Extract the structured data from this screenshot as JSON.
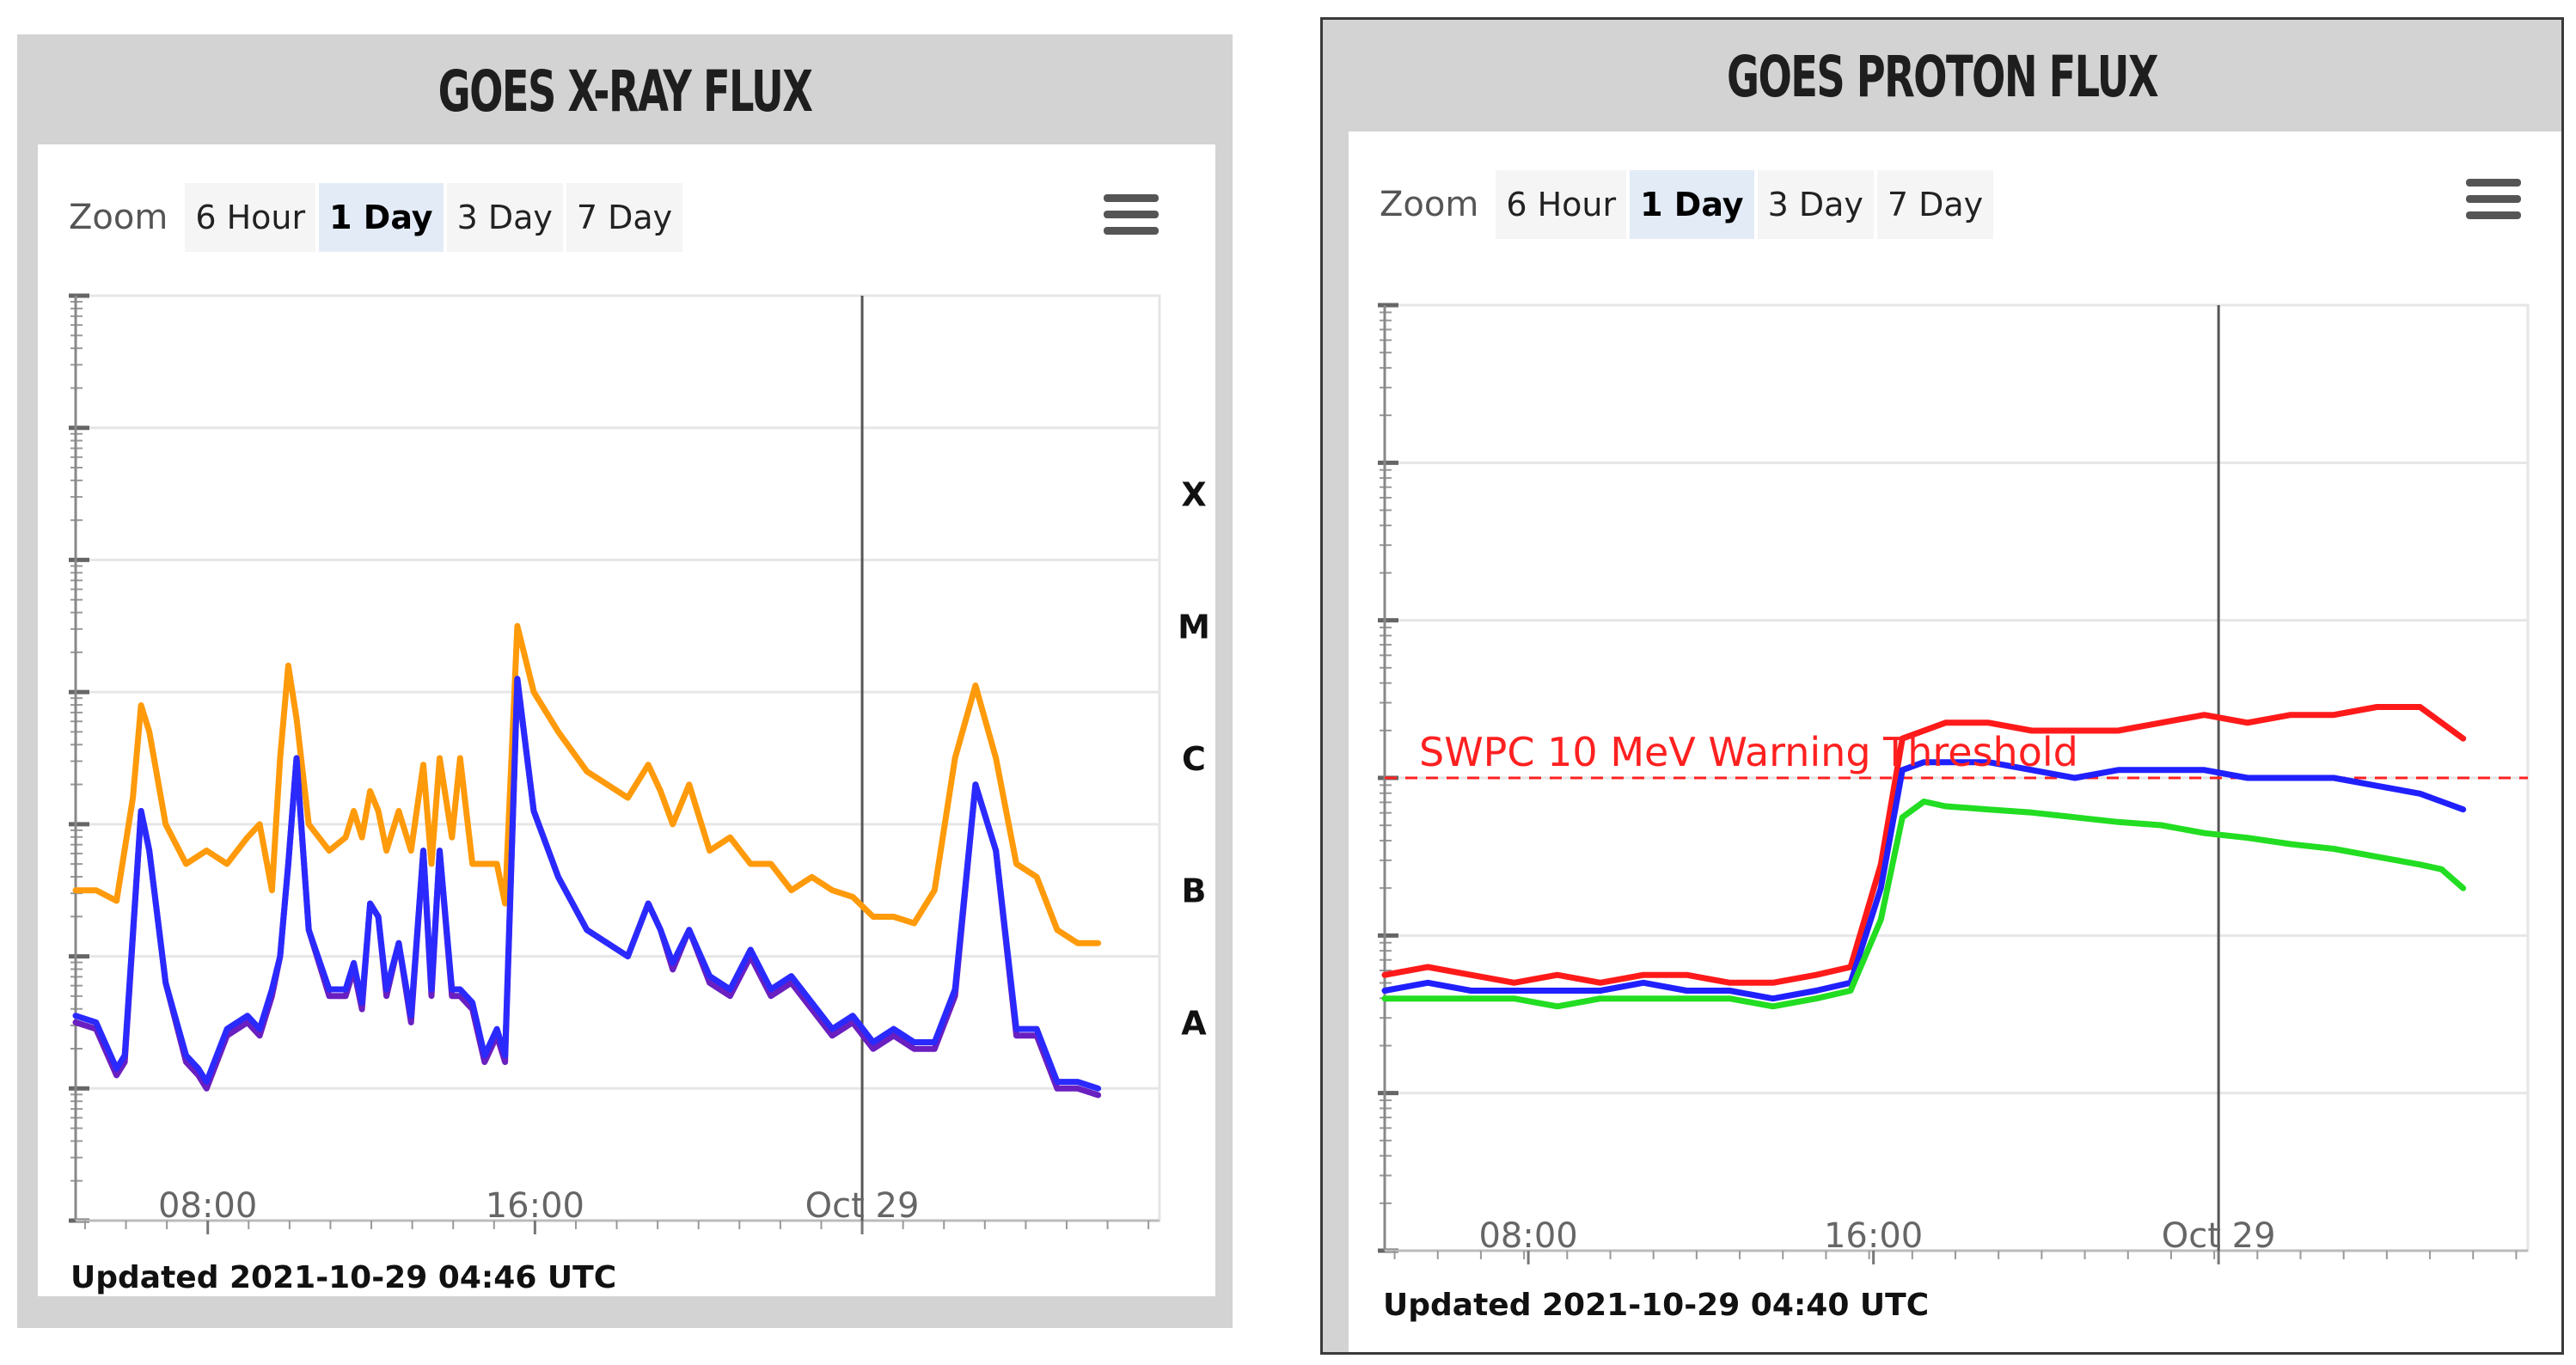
{
  "panels": [
    {
      "title": "GOES X-RAY FLUX",
      "zoom_label": "Zoom",
      "zoom_buttons": [
        "6 Hour",
        "1 Day",
        "3 Day",
        "7 Day"
      ],
      "active_zoom": "1 Day",
      "updated": "Updated 2021-10-29 04:46 UTC"
    },
    {
      "title": "GOES PROTON FLUX",
      "zoom_label": "Zoom",
      "zoom_buttons": [
        "6 Hour",
        "1 Day",
        "3 Day",
        "7 Day"
      ],
      "active_zoom": "1 Day",
      "updated": "Updated 2021-10-29 04:40 UTC"
    }
  ],
  "chart_data": [
    {
      "type": "line",
      "title": "GOES X-RAY FLUX",
      "x_unit": "hours since 2021-10-28 04:46 UTC",
      "xlim": [
        0,
        26.5
      ],
      "x_tick_labels": [
        {
          "x": 3.23,
          "label": "08:00"
        },
        {
          "x": 11.23,
          "label": "16:00"
        },
        {
          "x": 19.23,
          "label": "Oct 29"
        }
      ],
      "ylim_log10": [
        -9,
        -2
      ],
      "y_scale": "log",
      "flare_class_labels": [
        {
          "log10": -3.5,
          "label": "X"
        },
        {
          "log10": -4.5,
          "label": "M"
        },
        {
          "log10": -5.5,
          "label": "C"
        },
        {
          "log10": -6.5,
          "label": "B"
        },
        {
          "log10": -7.5,
          "label": "A"
        }
      ],
      "grid": true,
      "vertical_line_x": 19.23,
      "series": [
        {
          "color": "#ff9a0a",
          "x": [
            0,
            0.5,
            1.0,
            1.4,
            1.6,
            1.8,
            2.2,
            2.7,
            3.2,
            3.7,
            4.2,
            4.5,
            4.8,
            5.0,
            5.2,
            5.4,
            5.7,
            6.2,
            6.6,
            6.8,
            7.0,
            7.2,
            7.4,
            7.6,
            7.9,
            8.2,
            8.5,
            8.7,
            8.9,
            9.2,
            9.4,
            9.7,
            10.0,
            10.3,
            10.5,
            10.8,
            11.0,
            11.2,
            11.8,
            12.5,
            13.5,
            14.0,
            14.3,
            14.6,
            15.0,
            15.5,
            16.0,
            16.5,
            17.0,
            17.5,
            18.0,
            18.5,
            19.0,
            19.5,
            20.0,
            20.5,
            21.0,
            21.5,
            22.0,
            22.5,
            23.0,
            23.5,
            24.0,
            24.5,
            25.0
          ],
          "log10": [
            -6.5,
            -6.5,
            -6.58,
            -5.8,
            -5.1,
            -5.3,
            -6.0,
            -6.3,
            -6.2,
            -6.3,
            -6.1,
            -6.0,
            -6.5,
            -5.5,
            -4.8,
            -5.2,
            -6.0,
            -6.2,
            -6.1,
            -5.9,
            -6.1,
            -5.75,
            -5.9,
            -6.2,
            -5.9,
            -6.2,
            -5.55,
            -6.3,
            -5.5,
            -6.1,
            -5.5,
            -6.3,
            -6.3,
            -6.3,
            -6.6,
            -4.5,
            -4.75,
            -5.0,
            -5.3,
            -5.6,
            -5.8,
            -5.55,
            -5.75,
            -6.0,
            -5.7,
            -6.2,
            -6.1,
            -6.3,
            -6.3,
            -6.5,
            -6.4,
            -6.5,
            -6.55,
            -6.7,
            -6.7,
            -6.75,
            -6.5,
            -5.5,
            -4.95,
            -5.5,
            -6.3,
            -6.4,
            -6.8,
            -6.9,
            -6.9
          ]
        },
        {
          "color": "#6a1fc0",
          "x": [
            0,
            0.5,
            1.0,
            1.2,
            1.6,
            1.8,
            2.2,
            2.7,
            3.0,
            3.2,
            3.7,
            4.2,
            4.5,
            4.8,
            5.0,
            5.2,
            5.4,
            5.7,
            6.2,
            6.6,
            6.8,
            7.0,
            7.2,
            7.4,
            7.6,
            7.9,
            8.2,
            8.5,
            8.7,
            8.9,
            9.2,
            9.4,
            9.7,
            10.0,
            10.3,
            10.5,
            10.8,
            11.0,
            11.2,
            11.8,
            12.5,
            13.5,
            14.0,
            14.3,
            14.6,
            15.0,
            15.5,
            16.0,
            16.5,
            17.0,
            17.5,
            18.0,
            18.5,
            19.0,
            19.5,
            20.0,
            20.5,
            21.0,
            21.5,
            22.0,
            22.5,
            23.0,
            23.5,
            24.0,
            24.5,
            25.0
          ],
          "log10": [
            -7.5,
            -7.55,
            -7.9,
            -7.8,
            -5.9,
            -6.2,
            -7.2,
            -7.8,
            -7.9,
            -8.0,
            -7.6,
            -7.5,
            -7.6,
            -7.3,
            -7.0,
            -6.3,
            -5.5,
            -6.8,
            -7.3,
            -7.3,
            -7.1,
            -7.4,
            -6.6,
            -6.7,
            -7.3,
            -6.9,
            -7.5,
            -6.2,
            -7.3,
            -6.2,
            -7.3,
            -7.3,
            -7.4,
            -7.8,
            -7.6,
            -7.8,
            -4.9,
            -5.4,
            -5.9,
            -6.4,
            -6.8,
            -7.0,
            -6.6,
            -6.8,
            -7.1,
            -6.8,
            -7.2,
            -7.3,
            -7.0,
            -7.3,
            -7.2,
            -7.4,
            -7.6,
            -7.5,
            -7.7,
            -7.6,
            -7.7,
            -7.7,
            -7.3,
            -5.7,
            -6.2,
            -7.6,
            -7.6,
            -8.0,
            -8.0,
            -8.05
          ]
        },
        {
          "color": "#2a2aff",
          "x": [
            0,
            0.5,
            1.0,
            1.2,
            1.6,
            1.8,
            2.2,
            2.7,
            3.0,
            3.2,
            3.7,
            4.2,
            4.5,
            4.8,
            5.0,
            5.2,
            5.4,
            5.7,
            6.2,
            6.6,
            6.8,
            7.0,
            7.2,
            7.4,
            7.6,
            7.9,
            8.2,
            8.5,
            8.7,
            8.9,
            9.2,
            9.4,
            9.7,
            10.0,
            10.3,
            10.5,
            10.8,
            11.0,
            11.2,
            11.8,
            12.5,
            13.5,
            14.0,
            14.3,
            14.6,
            15.0,
            15.5,
            16.0,
            16.5,
            17.0,
            17.5,
            18.0,
            18.5,
            19.0,
            19.5,
            20.0,
            20.5,
            21.0,
            21.5,
            22.0,
            22.5,
            23.0,
            23.5,
            24.0,
            24.5,
            25.0
          ],
          "log10": [
            -7.45,
            -7.5,
            -7.85,
            -7.75,
            -5.9,
            -6.2,
            -7.2,
            -7.75,
            -7.85,
            -7.95,
            -7.55,
            -7.45,
            -7.55,
            -7.25,
            -7.0,
            -6.3,
            -5.5,
            -6.8,
            -7.25,
            -7.25,
            -7.05,
            -7.35,
            -6.6,
            -6.7,
            -7.25,
            -6.9,
            -7.45,
            -6.2,
            -7.25,
            -6.2,
            -7.25,
            -7.25,
            -7.35,
            -7.75,
            -7.55,
            -7.75,
            -4.9,
            -5.4,
            -5.9,
            -6.4,
            -6.8,
            -7.0,
            -6.6,
            -6.8,
            -7.05,
            -6.8,
            -7.15,
            -7.25,
            -6.95,
            -7.25,
            -7.15,
            -7.35,
            -7.55,
            -7.45,
            -7.65,
            -7.55,
            -7.65,
            -7.65,
            -7.25,
            -5.7,
            -6.2,
            -7.55,
            -7.55,
            -7.95,
            -7.95,
            -8.0
          ]
        }
      ]
    },
    {
      "type": "line",
      "title": "GOES PROTON FLUX",
      "x_unit": "hours since 2021-10-28 04:40 UTC",
      "xlim": [
        0,
        26.5
      ],
      "x_tick_labels": [
        {
          "x": 3.33,
          "label": "08:00"
        },
        {
          "x": 11.33,
          "label": "16:00"
        },
        {
          "x": 19.33,
          "label": "Oct 29"
        }
      ],
      "ylim_log10": [
        -2,
        4
      ],
      "y_scale": "log",
      "grid": true,
      "vertical_line_x": 19.33,
      "threshold": {
        "log10": 1,
        "label": "SWPC 10 MeV Warning Threshold",
        "color": "#ff2020"
      },
      "series": [
        {
          "color": "#ff1a1a",
          "x": [
            0,
            1,
            2,
            3,
            4,
            5,
            6,
            7,
            8,
            9,
            10,
            10.8,
            11.5,
            12.0,
            12.5,
            13,
            14,
            15,
            16,
            17,
            18,
            19,
            20,
            21,
            22,
            23,
            24,
            24.5,
            25.0
          ],
          "log10": [
            -0.25,
            -0.2,
            -0.25,
            -0.3,
            -0.25,
            -0.3,
            -0.25,
            -0.25,
            -0.3,
            -0.3,
            -0.25,
            -0.2,
            0.45,
            1.25,
            1.3,
            1.35,
            1.35,
            1.3,
            1.3,
            1.3,
            1.35,
            1.4,
            1.35,
            1.4,
            1.4,
            1.45,
            1.45,
            1.35,
            1.25
          ]
        },
        {
          "color": "#2020ff",
          "x": [
            0,
            1,
            2,
            3,
            4,
            5,
            6,
            7,
            8,
            9,
            10,
            10.8,
            11.5,
            12.0,
            12.5,
            13,
            14,
            15,
            16,
            17,
            18,
            19,
            20,
            21,
            22,
            23,
            24,
            24.5,
            25.0
          ],
          "log10": [
            -0.35,
            -0.3,
            -0.35,
            -0.35,
            -0.35,
            -0.35,
            -0.3,
            -0.35,
            -0.35,
            -0.4,
            -0.35,
            -0.3,
            0.3,
            1.05,
            1.1,
            1.1,
            1.1,
            1.05,
            1.0,
            1.05,
            1.05,
            1.05,
            1.0,
            1.0,
            1.0,
            0.95,
            0.9,
            0.85,
            0.8
          ]
        },
        {
          "color": "#22dd22",
          "x": [
            0,
            1,
            2,
            3,
            4,
            5,
            6,
            7,
            8,
            9,
            10,
            10.8,
            11.5,
            12.0,
            12.5,
            13,
            14,
            15,
            16,
            17,
            18,
            19,
            20,
            21,
            22,
            23,
            24,
            24.5,
            25.0
          ],
          "log10": [
            -0.4,
            -0.4,
            -0.4,
            -0.4,
            -0.45,
            -0.4,
            -0.4,
            -0.4,
            -0.4,
            -0.45,
            -0.4,
            -0.35,
            0.1,
            0.75,
            0.85,
            0.82,
            0.8,
            0.78,
            0.75,
            0.72,
            0.7,
            0.65,
            0.62,
            0.58,
            0.55,
            0.5,
            0.45,
            0.42,
            0.3
          ]
        }
      ]
    }
  ]
}
